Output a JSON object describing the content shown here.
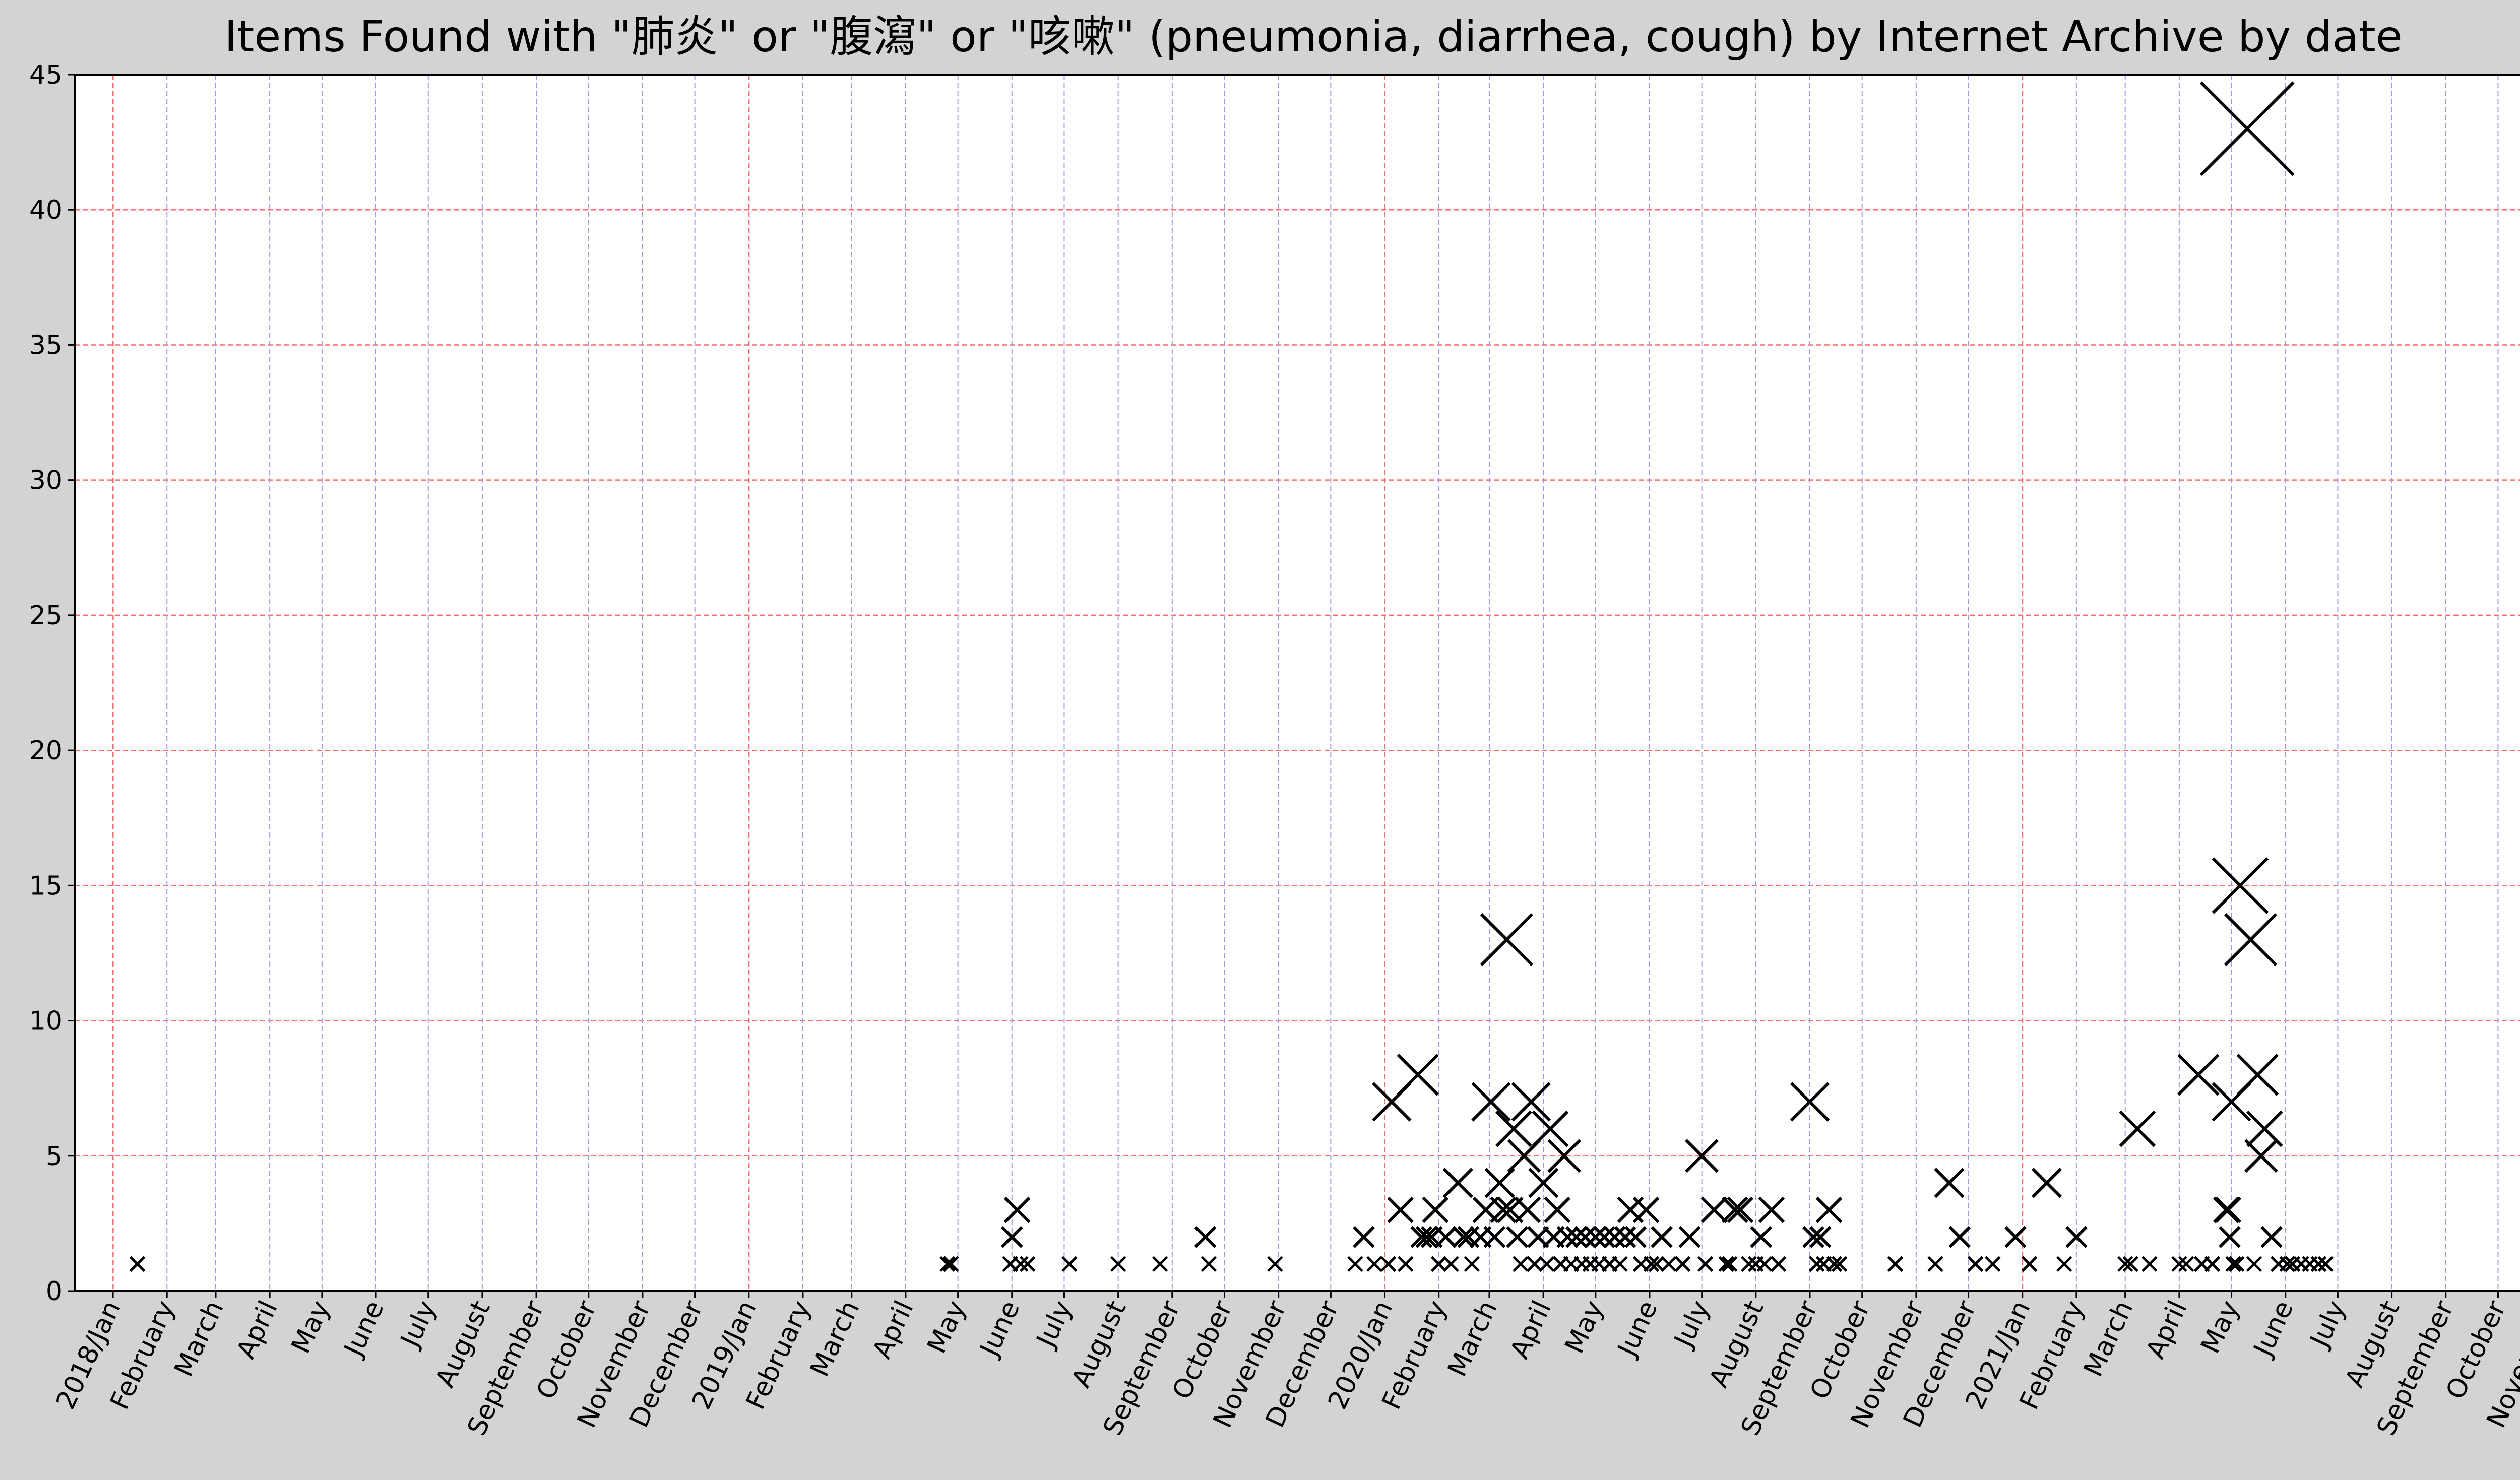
{
  "chart_data": {
    "type": "scatter",
    "title": "Items Found with \"肺炎\" or \"腹瀉\" or \"咳嗽\" (pneumonia, diarrhea, cough) by Internet Archive by date",
    "xlabel": "",
    "ylabel": "",
    "xlim": [
      "2017-12-10",
      "2021-11-15"
    ],
    "ylim": [
      0,
      45
    ],
    "y_ticks": [
      0,
      5,
      10,
      15,
      20,
      25,
      30,
      35,
      40,
      45
    ],
    "x_ticks": [
      {
        "date": "2018-01-01",
        "label": "2018/Jan"
      },
      {
        "date": "2018-02-01",
        "label": "February"
      },
      {
        "date": "2018-03-01",
        "label": "March"
      },
      {
        "date": "2018-04-01",
        "label": "April"
      },
      {
        "date": "2018-05-01",
        "label": "May"
      },
      {
        "date": "2018-06-01",
        "label": "June"
      },
      {
        "date": "2018-07-01",
        "label": "July"
      },
      {
        "date": "2018-08-01",
        "label": "August"
      },
      {
        "date": "2018-09-01",
        "label": "September"
      },
      {
        "date": "2018-10-01",
        "label": "October"
      },
      {
        "date": "2018-11-01",
        "label": "November"
      },
      {
        "date": "2018-12-01",
        "label": "December"
      },
      {
        "date": "2019-01-01",
        "label": "2019/Jan"
      },
      {
        "date": "2019-02-01",
        "label": "February"
      },
      {
        "date": "2019-03-01",
        "label": "March"
      },
      {
        "date": "2019-04-01",
        "label": "April"
      },
      {
        "date": "2019-05-01",
        "label": "May"
      },
      {
        "date": "2019-06-01",
        "label": "June"
      },
      {
        "date": "2019-07-01",
        "label": "July"
      },
      {
        "date": "2019-08-01",
        "label": "August"
      },
      {
        "date": "2019-09-01",
        "label": "September"
      },
      {
        "date": "2019-10-01",
        "label": "October"
      },
      {
        "date": "2019-11-01",
        "label": "November"
      },
      {
        "date": "2019-12-01",
        "label": "December"
      },
      {
        "date": "2020-01-01",
        "label": "2020/Jan"
      },
      {
        "date": "2020-02-01",
        "label": "February"
      },
      {
        "date": "2020-03-01",
        "label": "March"
      },
      {
        "date": "2020-04-01",
        "label": "April"
      },
      {
        "date": "2020-05-01",
        "label": "May"
      },
      {
        "date": "2020-06-01",
        "label": "June"
      },
      {
        "date": "2020-07-01",
        "label": "July"
      },
      {
        "date": "2020-08-01",
        "label": "August"
      },
      {
        "date": "2020-09-01",
        "label": "September"
      },
      {
        "date": "2020-10-01",
        "label": "October"
      },
      {
        "date": "2020-11-01",
        "label": "November"
      },
      {
        "date": "2020-12-01",
        "label": "December"
      },
      {
        "date": "2021-01-01",
        "label": "2021/Jan"
      },
      {
        "date": "2021-02-01",
        "label": "February"
      },
      {
        "date": "2021-03-01",
        "label": "March"
      },
      {
        "date": "2021-04-01",
        "label": "April"
      },
      {
        "date": "2021-05-01",
        "label": "May"
      },
      {
        "date": "2021-06-01",
        "label": "June"
      },
      {
        "date": "2021-07-01",
        "label": "July"
      },
      {
        "date": "2021-08-01",
        "label": "August"
      },
      {
        "date": "2021-09-01",
        "label": "September"
      },
      {
        "date": "2021-10-01",
        "label": "October"
      },
      {
        "date": "2021-11-01",
        "label": "November"
      }
    ],
    "grid": true,
    "marker": "x",
    "marker_size_scales_with_value": true,
    "colors": {
      "background": "#d3d3d3",
      "plot_background": "#ffffff",
      "marker": "#000000",
      "year_grid": "#ff6b6b",
      "month_grid": "#9999ee",
      "y_grid": "#ff6b6b"
    },
    "points": [
      {
        "x": "2018-01-15",
        "y": 1
      },
      {
        "x": "2019-04-25",
        "y": 1
      },
      {
        "x": "2019-04-27",
        "y": 1
      },
      {
        "x": "2019-05-31",
        "y": 1
      },
      {
        "x": "2019-06-01",
        "y": 2
      },
      {
        "x": "2019-06-04",
        "y": 3
      },
      {
        "x": "2019-06-06",
        "y": 1
      },
      {
        "x": "2019-06-10",
        "y": 1
      },
      {
        "x": "2019-07-04",
        "y": 1
      },
      {
        "x": "2019-08-01",
        "y": 1
      },
      {
        "x": "2019-08-25",
        "y": 1
      },
      {
        "x": "2019-09-20",
        "y": 2
      },
      {
        "x": "2019-09-22",
        "y": 1
      },
      {
        "x": "2019-10-30",
        "y": 1
      },
      {
        "x": "2019-12-15",
        "y": 1
      },
      {
        "x": "2019-12-20",
        "y": 2
      },
      {
        "x": "2019-12-26",
        "y": 1
      },
      {
        "x": "2020-01-03",
        "y": 1
      },
      {
        "x": "2020-01-05",
        "y": 7
      },
      {
        "x": "2020-01-10",
        "y": 3
      },
      {
        "x": "2020-01-13",
        "y": 1
      },
      {
        "x": "2020-01-20",
        "y": 8
      },
      {
        "x": "2020-01-22",
        "y": 2
      },
      {
        "x": "2020-01-25",
        "y": 2
      },
      {
        "x": "2020-01-28",
        "y": 2
      },
      {
        "x": "2020-01-30",
        "y": 3
      },
      {
        "x": "2020-02-01",
        "y": 1
      },
      {
        "x": "2020-02-05",
        "y": 2
      },
      {
        "x": "2020-02-08",
        "y": 1
      },
      {
        "x": "2020-02-12",
        "y": 4
      },
      {
        "x": "2020-02-15",
        "y": 2
      },
      {
        "x": "2020-02-18",
        "y": 2
      },
      {
        "x": "2020-02-20",
        "y": 1
      },
      {
        "x": "2020-02-25",
        "y": 2
      },
      {
        "x": "2020-02-28",
        "y": 3
      },
      {
        "x": "2020-03-02",
        "y": 7
      },
      {
        "x": "2020-03-04",
        "y": 2
      },
      {
        "x": "2020-03-07",
        "y": 4
      },
      {
        "x": "2020-03-09",
        "y": 3
      },
      {
        "x": "2020-03-11",
        "y": 13
      },
      {
        "x": "2020-03-13",
        "y": 3
      },
      {
        "x": "2020-03-15",
        "y": 6
      },
      {
        "x": "2020-03-17",
        "y": 2
      },
      {
        "x": "2020-03-19",
        "y": 1
      },
      {
        "x": "2020-03-21",
        "y": 5
      },
      {
        "x": "2020-03-23",
        "y": 3
      },
      {
        "x": "2020-03-25",
        "y": 7
      },
      {
        "x": "2020-03-27",
        "y": 1
      },
      {
        "x": "2020-03-29",
        "y": 2
      },
      {
        "x": "2020-04-01",
        "y": 4
      },
      {
        "x": "2020-04-03",
        "y": 1
      },
      {
        "x": "2020-04-05",
        "y": 6
      },
      {
        "x": "2020-04-07",
        "y": 2
      },
      {
        "x": "2020-04-09",
        "y": 3
      },
      {
        "x": "2020-04-11",
        "y": 1
      },
      {
        "x": "2020-04-13",
        "y": 5
      },
      {
        "x": "2020-04-15",
        "y": 2
      },
      {
        "x": "2020-04-17",
        "y": 1
      },
      {
        "x": "2020-04-20",
        "y": 2
      },
      {
        "x": "2020-04-23",
        "y": 1
      },
      {
        "x": "2020-04-25",
        "y": 2
      },
      {
        "x": "2020-04-28",
        "y": 1
      },
      {
        "x": "2020-05-01",
        "y": 2
      },
      {
        "x": "2020-05-03",
        "y": 1
      },
      {
        "x": "2020-05-06",
        "y": 2
      },
      {
        "x": "2020-05-09",
        "y": 1
      },
      {
        "x": "2020-05-12",
        "y": 2
      },
      {
        "x": "2020-05-15",
        "y": 1
      },
      {
        "x": "2020-05-18",
        "y": 2
      },
      {
        "x": "2020-05-21",
        "y": 3
      },
      {
        "x": "2020-05-24",
        "y": 2
      },
      {
        "x": "2020-05-27",
        "y": 1
      },
      {
        "x": "2020-05-30",
        "y": 3
      },
      {
        "x": "2020-06-02",
        "y": 1
      },
      {
        "x": "2020-06-05",
        "y": 1
      },
      {
        "x": "2020-06-08",
        "y": 2
      },
      {
        "x": "2020-06-12",
        "y": 1
      },
      {
        "x": "2020-06-20",
        "y": 1
      },
      {
        "x": "2020-06-24",
        "y": 2
      },
      {
        "x": "2020-07-01",
        "y": 5
      },
      {
        "x": "2020-07-03",
        "y": 1
      },
      {
        "x": "2020-07-08",
        "y": 3
      },
      {
        "x": "2020-07-15",
        "y": 1
      },
      {
        "x": "2020-07-17",
        "y": 1
      },
      {
        "x": "2020-07-20",
        "y": 3
      },
      {
        "x": "2020-07-23",
        "y": 3
      },
      {
        "x": "2020-07-28",
        "y": 1
      },
      {
        "x": "2020-08-01",
        "y": 1
      },
      {
        "x": "2020-08-04",
        "y": 2
      },
      {
        "x": "2020-08-06",
        "y": 1
      },
      {
        "x": "2020-08-10",
        "y": 3
      },
      {
        "x": "2020-08-14",
        "y": 1
      },
      {
        "x": "2020-09-01",
        "y": 7
      },
      {
        "x": "2020-09-03",
        "y": 2
      },
      {
        "x": "2020-09-05",
        "y": 1
      },
      {
        "x": "2020-09-07",
        "y": 2
      },
      {
        "x": "2020-09-09",
        "y": 1
      },
      {
        "x": "2020-09-12",
        "y": 3
      },
      {
        "x": "2020-09-15",
        "y": 1
      },
      {
        "x": "2020-09-18",
        "y": 1
      },
      {
        "x": "2020-10-20",
        "y": 1
      },
      {
        "x": "2020-11-12",
        "y": 1
      },
      {
        "x": "2020-11-20",
        "y": 4
      },
      {
        "x": "2020-11-26",
        "y": 2
      },
      {
        "x": "2020-12-05",
        "y": 1
      },
      {
        "x": "2020-12-15",
        "y": 1
      },
      {
        "x": "2020-12-28",
        "y": 2
      },
      {
        "x": "2021-01-05",
        "y": 1
      },
      {
        "x": "2021-01-15",
        "y": 4
      },
      {
        "x": "2021-01-25",
        "y": 1
      },
      {
        "x": "2021-02-01",
        "y": 2
      },
      {
        "x": "2021-03-01",
        "y": 1
      },
      {
        "x": "2021-03-04",
        "y": 1
      },
      {
        "x": "2021-03-08",
        "y": 6
      },
      {
        "x": "2021-03-15",
        "y": 1
      },
      {
        "x": "2021-04-01",
        "y": 1
      },
      {
        "x": "2021-04-05",
        "y": 1
      },
      {
        "x": "2021-04-12",
        "y": 8
      },
      {
        "x": "2021-04-14",
        "y": 1
      },
      {
        "x": "2021-04-20",
        "y": 1
      },
      {
        "x": "2021-04-28",
        "y": 3
      },
      {
        "x": "2021-04-29",
        "y": 3
      },
      {
        "x": "2021-04-30",
        "y": 2
      },
      {
        "x": "2021-05-01",
        "y": 7
      },
      {
        "x": "2021-05-02",
        "y": 1
      },
      {
        "x": "2021-05-04",
        "y": 1
      },
      {
        "x": "2021-05-06",
        "y": 15
      },
      {
        "x": "2021-05-10",
        "y": 43
      },
      {
        "x": "2021-05-12",
        "y": 13
      },
      {
        "x": "2021-05-14",
        "y": 1
      },
      {
        "x": "2021-05-16",
        "y": 8
      },
      {
        "x": "2021-05-18",
        "y": 5
      },
      {
        "x": "2021-05-20",
        "y": 6
      },
      {
        "x": "2021-05-24",
        "y": 2
      },
      {
        "x": "2021-05-28",
        "y": 1
      },
      {
        "x": "2021-06-02",
        "y": 1
      },
      {
        "x": "2021-06-05",
        "y": 1
      },
      {
        "x": "2021-06-10",
        "y": 1
      },
      {
        "x": "2021-06-15",
        "y": 1
      },
      {
        "x": "2021-06-20",
        "y": 1
      },
      {
        "x": "2021-06-24",
        "y": 1
      }
    ]
  }
}
